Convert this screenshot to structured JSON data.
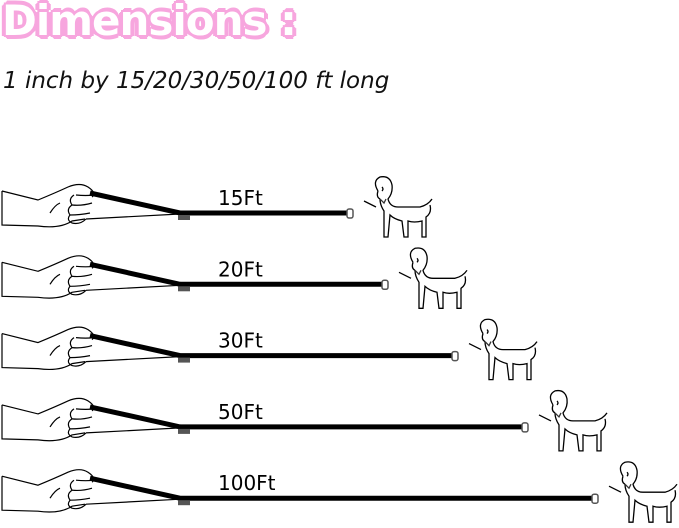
{
  "title": "Dimensions :",
  "subtitle": "1 inch by 15/20/30/50/100 ft long",
  "colors": {
    "title_outline": "#f7a6de",
    "leash": "#000000"
  },
  "leashes": [
    {
      "label": "15Ft",
      "length_ft": 15
    },
    {
      "label": "20Ft",
      "length_ft": 20
    },
    {
      "label": "30Ft",
      "length_ft": 30
    },
    {
      "label": "50Ft",
      "length_ft": 50
    },
    {
      "label": "100Ft",
      "length_ft": 100
    }
  ]
}
